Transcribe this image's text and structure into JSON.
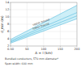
{
  "chart_data": {
    "type": "line",
    "xlabel": "A = l (km)",
    "ylabel": "d_min (m)",
    "xlim": [
      0.5,
      200
    ],
    "ylim": [
      2,
      14
    ],
    "xticks": [
      {
        "value": 0.5,
        "label": "0.50"
      },
      50,
      100,
      150,
      200
    ],
    "yticks": [
      2,
      4,
      6,
      8,
      10,
      12,
      14
    ],
    "grid": true,
    "band": {
      "x": [
        0.5,
        200
      ],
      "y1": [
        2.8,
        9.5
      ],
      "y2": [
        3.8,
        13.2
      ],
      "color": "#b8e8f5"
    },
    "series": [
      {
        "x": [
          0.5,
          200
        ],
        "values": [
          2.8,
          9.5
        ],
        "color": "#55bbdd"
      },
      {
        "x": [
          0.5,
          200
        ],
        "values": [
          3.1,
          10.3
        ],
        "color": "#55bbdd"
      },
      {
        "x": [
          0.5,
          200
        ],
        "values": [
          3.4,
          11.2
        ],
        "color": "#55bbdd"
      },
      {
        "x": [
          0.5,
          200
        ],
        "values": [
          3.8,
          13.2
        ],
        "color": "#55bbdd"
      }
    ],
    "annotations": [
      {
        "text": "upper bound",
        "x": 68,
        "y": 7.6,
        "color": "#444444"
      },
      {
        "text": "lower bound",
        "x": 68,
        "y": 6.5,
        "color": "#444444"
      }
    ],
    "notes": [
      "Bundled conductors, 570 mm diameter²",
      "Span width: 600 mm"
    ]
  }
}
